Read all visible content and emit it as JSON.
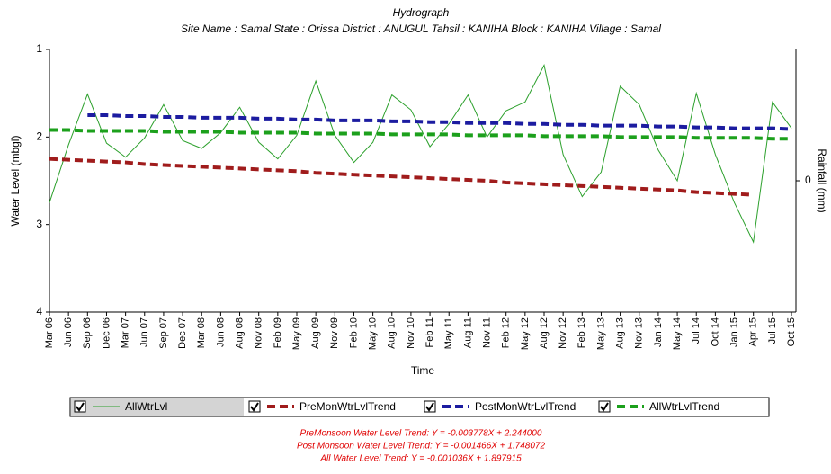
{
  "chart_data": {
    "type": "line",
    "title": "Hydrograph",
    "subtitle": "Site Name : Samal  State : Orissa District : ANUGUL  Tahsil : KANIHA  Block : KANIHA Village : Samal",
    "x_label": "Time",
    "y_label": "Water Level (mbgl)",
    "y2_label": "Rainfall (mm)",
    "categories": [
      "Mar 06",
      "Jun 06",
      "Sep 06",
      "Dec 06",
      "Mar 07",
      "Jun 07",
      "Sep 07",
      "Dec 07",
      "Mar 08",
      "Jun 08",
      "Aug 08",
      "Nov 08",
      "Feb 09",
      "May 09",
      "Aug 09",
      "Nov 09",
      "Feb 10",
      "May 10",
      "Aug 10",
      "Nov 10",
      "Feb 11",
      "May 11",
      "Aug 11",
      "Nov 11",
      "Feb 12",
      "May 12",
      "Aug 12",
      "Nov 12",
      "Feb 13",
      "May 13",
      "Aug 13",
      "Nov 13",
      "Jan 14",
      "May 14",
      "Jul 14",
      "Oct 14",
      "Jan 15",
      "Apr 15",
      "Jul 15",
      "Oct 15"
    ],
    "series": [
      {
        "name": "AllWtrLvl",
        "color": "#2ca02c",
        "dashed": false,
        "values": [
          2.75,
          2.09,
          1.51,
          2.07,
          2.23,
          2.01,
          1.63,
          2.04,
          2.13,
          1.95,
          1.66,
          2.06,
          2.25,
          1.98,
          1.36,
          1.98,
          2.29,
          2.06,
          1.52,
          1.69,
          2.11,
          1.85,
          1.52,
          2.0,
          1.7,
          1.6,
          1.18,
          2.2,
          2.68,
          2.4,
          1.42,
          1.63,
          2.15,
          2.5,
          1.5,
          2.2,
          2.75,
          3.2,
          1.6,
          1.9
        ]
      },
      {
        "name": "PreMonWtrLvlTrend",
        "color": "#a01c1c",
        "dashed": true,
        "values": [
          2.25,
          2.26,
          2.27,
          2.28,
          2.29,
          2.31,
          2.32,
          2.33,
          2.34,
          2.35,
          2.36,
          2.37,
          2.38,
          2.39,
          2.41,
          2.42,
          2.43,
          2.44,
          2.45,
          2.46,
          2.47,
          2.48,
          2.49,
          2.5,
          2.52,
          2.53,
          2.54,
          2.55,
          2.56,
          2.57,
          2.58,
          2.59,
          2.6,
          2.61,
          2.63,
          2.64,
          2.65,
          2.66,
          null,
          null
        ]
      },
      {
        "name": "PostMonWtrLvlTrend",
        "color": "#1c1ca0",
        "dashed": true,
        "values": [
          null,
          null,
          1.75,
          1.75,
          1.76,
          1.76,
          1.77,
          1.77,
          1.78,
          1.78,
          1.78,
          1.79,
          1.79,
          1.8,
          1.8,
          1.81,
          1.81,
          1.81,
          1.82,
          1.82,
          1.83,
          1.83,
          1.84,
          1.84,
          1.84,
          1.85,
          1.85,
          1.86,
          1.86,
          1.87,
          1.87,
          1.87,
          1.88,
          1.88,
          1.89,
          1.89,
          1.9,
          1.9,
          1.9,
          1.91
        ]
      },
      {
        "name": "AllWtrLvlTrend",
        "color": "#1ca01c",
        "dashed": true,
        "values": [
          1.92,
          1.92,
          1.93,
          1.93,
          1.93,
          1.93,
          1.94,
          1.94,
          1.94,
          1.94,
          1.95,
          1.95,
          1.95,
          1.95,
          1.96,
          1.96,
          1.96,
          1.96,
          1.97,
          1.97,
          1.97,
          1.97,
          1.98,
          1.98,
          1.98,
          1.98,
          1.99,
          1.99,
          1.99,
          1.99,
          2.0,
          2.0,
          2.0,
          2.0,
          2.01,
          2.01,
          2.01,
          2.01,
          2.02,
          2.02
        ]
      }
    ],
    "ylim": [
      1,
      4
    ],
    "yticks": [
      1,
      2,
      3,
      4
    ],
    "y_inverted": true,
    "y2lim": [
      -1,
      1
    ],
    "y2ticks": [
      0
    ],
    "grid": false,
    "annotations": [
      "PreMonsoon Water Level Trend: Y = -0.003778X + 2.244000",
      "Post Monsoon Water Level Trend: Y = -0.001466X + 1.748072",
      "All Water Level Trend: Y = -0.001036X + 1.897915"
    ]
  }
}
